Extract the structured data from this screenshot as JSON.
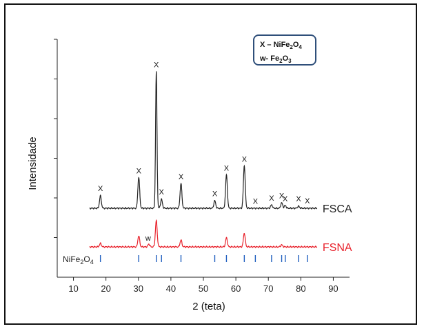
{
  "chart_data": {
    "type": "line",
    "xlabel": "2 (teta)",
    "ylabel": "Intensidade",
    "xlim": [
      5,
      95
    ],
    "xticks": [
      10,
      20,
      30,
      40,
      50,
      60,
      70,
      80,
      90
    ],
    "yticks_count": 6,
    "series": [
      {
        "name": "FSCA",
        "color": "#222222",
        "baseline": 100,
        "peaks": [
          {
            "x": 18.3,
            "h": 18
          },
          {
            "x": 30.1,
            "h": 45
          },
          {
            "x": 35.5,
            "h": 198
          },
          {
            "x": 37.1,
            "h": 13
          },
          {
            "x": 43.1,
            "h": 36
          },
          {
            "x": 53.5,
            "h": 11
          },
          {
            "x": 57.1,
            "h": 48
          },
          {
            "x": 62.6,
            "h": 62
          },
          {
            "x": 71.0,
            "h": 5
          },
          {
            "x": 74.1,
            "h": 8
          },
          {
            "x": 75.2,
            "h": 4
          },
          {
            "x": 79.3,
            "h": 3
          }
        ]
      },
      {
        "name": "FSNA",
        "color": "#e8202a",
        "baseline": 44,
        "peaks": [
          {
            "x": 18.3,
            "h": 5
          },
          {
            "x": 30.1,
            "h": 16
          },
          {
            "x": 33.2,
            "h": 4
          },
          {
            "x": 35.5,
            "h": 38
          },
          {
            "x": 43.1,
            "h": 10
          },
          {
            "x": 57.1,
            "h": 13
          },
          {
            "x": 62.6,
            "h": 20
          },
          {
            "x": 74.1,
            "h": 3
          }
        ]
      }
    ],
    "peak_labels": [
      {
        "x": 18.3,
        "text": "X"
      },
      {
        "x": 30.1,
        "text": "X"
      },
      {
        "x": 35.5,
        "text": "X"
      },
      {
        "x": 37.1,
        "text": "X"
      },
      {
        "x": 43.1,
        "text": "X"
      },
      {
        "x": 53.5,
        "text": "X"
      },
      {
        "x": 57.1,
        "text": "X"
      },
      {
        "x": 62.6,
        "text": "X"
      },
      {
        "x": 66.0,
        "text": "X"
      },
      {
        "x": 71.0,
        "text": "X"
      },
      {
        "x": 74.1,
        "text": "X"
      },
      {
        "x": 75.2,
        "text": "X"
      },
      {
        "x": 79.3,
        "text": "X"
      },
      {
        "x": 82.0,
        "text": "X"
      }
    ],
    "w_label": {
      "x": 33.0,
      "text": "w"
    },
    "reference": {
      "label": "NiFe",
      "label_sub1": "2",
      "label_mid": "O",
      "label_sub2": "4",
      "color": "#1f5fbf",
      "positions": [
        18.3,
        30.1,
        35.5,
        37.1,
        43.1,
        53.5,
        57.1,
        62.6,
        66.0,
        71.0,
        74.1,
        75.2,
        79.3,
        82.0
      ]
    },
    "legend": {
      "line1_pre": "X – NiFe",
      "line1_sub1": "2",
      "line1_mid": "O",
      "line1_sub2": "4",
      "line2_pre": "w- Fe",
      "line2_sub1": "2",
      "line2_mid": "O",
      "line2_sub2": "3"
    }
  }
}
